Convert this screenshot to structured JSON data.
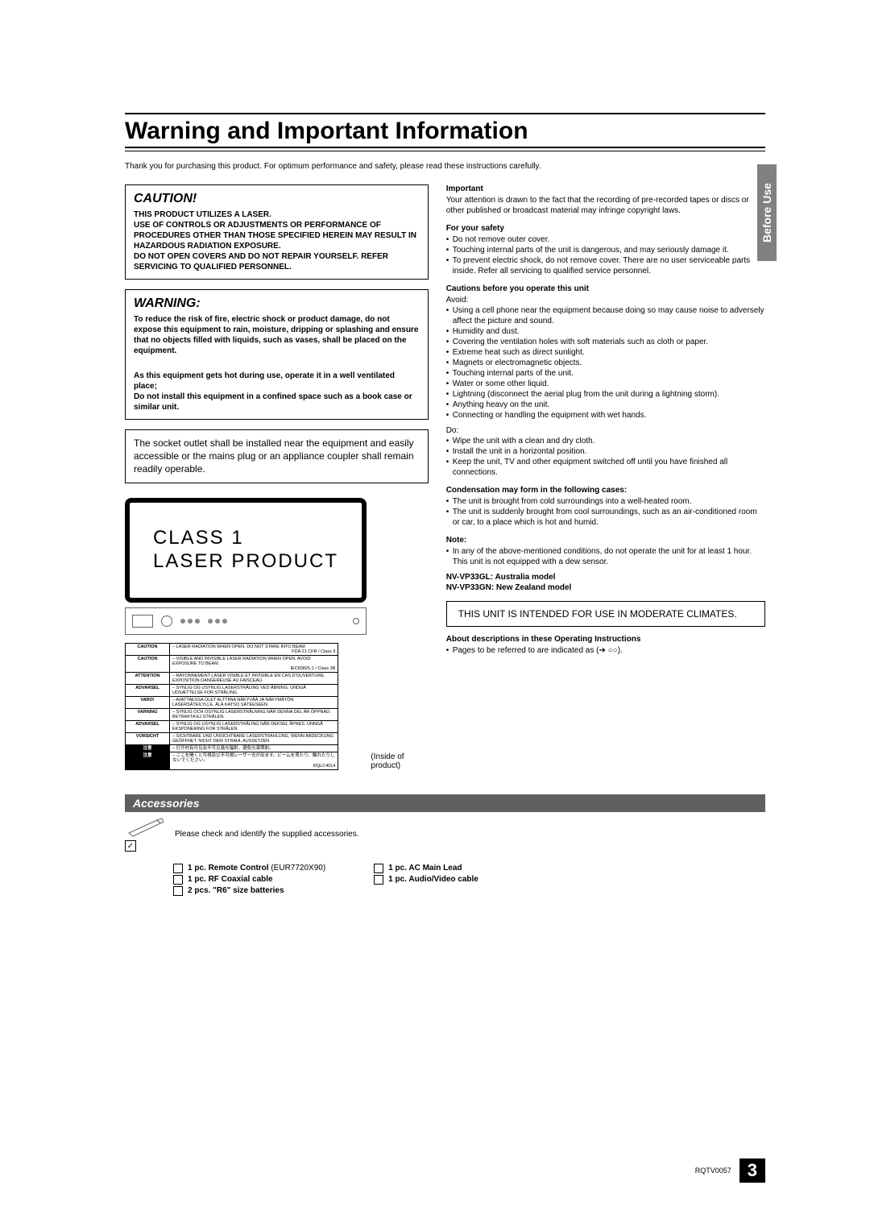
{
  "title": "Warning and Important Information",
  "intro": "Thank you for purchasing this product. For optimum performance and safety, please read these instructions carefully.",
  "side_tab": "Before Use",
  "caution": {
    "heading": "CAUTION!",
    "body": "THIS PRODUCT UTILIZES A LASER.\nUSE OF CONTROLS OR ADJUSTMENTS OR PERFORMANCE OF PROCEDURES OTHER THAN THOSE SPECIFIED HEREIN MAY RESULT IN HAZARDOUS RADIATION EXPOSURE.\nDO NOT OPEN COVERS AND DO NOT REPAIR YOURSELF. REFER SERVICING TO QUALIFIED PERSONNEL."
  },
  "warning": {
    "heading": "WARNING:",
    "para1": "To reduce the risk of fire, electric shock or product damage, do not expose this equipment to rain, moisture, dripping or splashing and ensure that no objects filled with liquids, such as vases, shall be placed on the equipment.",
    "para2": "As this equipment gets hot during use, operate it in a well ventilated place;",
    "para3": "Do not install this equipment in a confined space such as a book case or similar unit."
  },
  "socket_note": "The socket outlet shall be installed near the equipment and easily accessible or the mains plug or an appliance coupler shall remain readily operable.",
  "laser_label": "CLASS 1\nLASER PRODUCT",
  "inside_caption": "(Inside of product)",
  "caution_table_rows": [
    [
      "CAUTION",
      "LASER RADIATION WHEN OPEN. DO NOT STARE INTO BEAM.",
      "FDA 21 CFR / Class II"
    ],
    [
      "CAUTION",
      "VISIBLE AND INVISIBLE LASER RADIATION WHEN OPEN. AVOID EXPOSURE TO BEAM.",
      "IEC60825-1 / Class 3B"
    ],
    [
      "ATTENTION",
      "RAYONNEMENT LASER VISIBLE ET INVISIBLE EN CAS D'OUVERTURE. EXPOSITION DANGEREUSE AU FAISCEAU."
    ],
    [
      "ADVARSEL",
      "SYNLIG OG USYNLIG LASERSTRÅLING VED ÅBNING. UNDGÅ UDSÆTTELSE FOR STRÅLING."
    ],
    [
      "VARO!",
      "AVATTAESSA OLET ALTTIINA NÄKYVÄÄ JA NÄKYMÄTÖN LASERSÄTEILYLLE. ÄLÄ KATSO SÄTEESEEN."
    ],
    [
      "VARNING",
      "SYNLIG OCH OSYNLIG LASERSTRÅLNING NÄR DENNA DEL ÄR ÖPPNAD. BETRAKTA EJ STRÅLEN."
    ],
    [
      "ADVARSEL",
      "SYNLIG OG USYNLIG LASERSTRÅLING NÅR DEKSEL ÅPNES. UNNGÅ EKSPONERING FOR STRÅLEN."
    ],
    [
      "VORSICHT",
      "SICHTBARE UND UNSICHTBARE LASERSTRAHLUNG, WENN ABDECKUNG GEÖFFNET. NICHT DEM STRAHL AUSSETZEN."
    ],
    [
      "注意",
      "打开时有可见及不可见激光辐射。避免光束照射。"
    ],
    [
      "注意",
      "ここを開くと可視及び不可視レーザー光が出ます。ビームを見たり、触れたりしないでください。",
      "RQLC4014"
    ]
  ],
  "right": {
    "important_h": "Important",
    "important_p": "Your attention is drawn to the fact that the recording of pre-recorded tapes or discs or other published or broadcast material may infringe copyright laws.",
    "safety_h": "For your safety",
    "safety_items": [
      "Do not remove outer cover.",
      "Touching internal parts of the unit is dangerous, and may seriously damage it.",
      "To prevent electric shock, do not remove cover. There are no user serviceable parts inside. Refer all servicing to qualified service personnel."
    ],
    "before_h": "Cautions before you operate this unit",
    "avoid_label": "Avoid:",
    "avoid_items": [
      "Using a cell phone near the equipment because doing so may cause noise to adversely affect the picture and sound.",
      "Humidity and dust.",
      "Covering the ventilation holes with soft materials such as cloth or paper.",
      "Extreme heat such as direct sunlight.",
      "Magnets or electromagnetic objects.",
      "Touching internal parts of the unit.",
      "Water or some other liquid.",
      "Lightning (disconnect the aerial plug from the unit during a lightning storm).",
      "Anything heavy on the unit.",
      "Connecting or handling the equipment with wet hands."
    ],
    "do_label": "Do:",
    "do_items": [
      "Wipe the unit with a clean and dry cloth.",
      "Install the unit in a horizontal position.",
      "Keep the unit, TV and other equipment switched off until you have finished all connections."
    ],
    "cond_h": "Condensation may form in the following cases:",
    "cond_items": [
      "The unit is brought from cold surroundings into a well-heated room.",
      "The unit is suddenly brought from cool surroundings, such as an air-conditioned room or car, to a place which is hot and humid."
    ],
    "note_h": "Note:",
    "note_items": [
      "In any of the above-mentioned conditions, do not operate the unit for at least 1 hour. This unit is not equipped with a dew sensor."
    ],
    "model_lines": "NV-VP33GL: Australia model\nNV-VP33GN: New Zealand model",
    "climate": "THIS UNIT IS INTENDED FOR USE IN MODERATE CLIMATES.",
    "about_h": "About descriptions in these Operating Instructions",
    "about_p": "Pages to be referred to are indicated as (➔ ○○)."
  },
  "accessories": {
    "heading": "Accessories",
    "intro": "Please check and identify the supplied accessories.",
    "col1": [
      {
        "bold": "1 pc. Remote Control",
        "rest": " (EUR7720X90)"
      },
      {
        "bold": "1 pc. RF Coaxial cable",
        "rest": ""
      },
      {
        "bold": "2 pcs. \"R6\" size batteries",
        "rest": ""
      }
    ],
    "col2": [
      {
        "bold": "1 pc. AC Main Lead",
        "rest": ""
      },
      {
        "bold": "1 pc. Audio/Video cable",
        "rest": ""
      }
    ]
  },
  "footer_code": "RQTV0057",
  "page_number": "3"
}
